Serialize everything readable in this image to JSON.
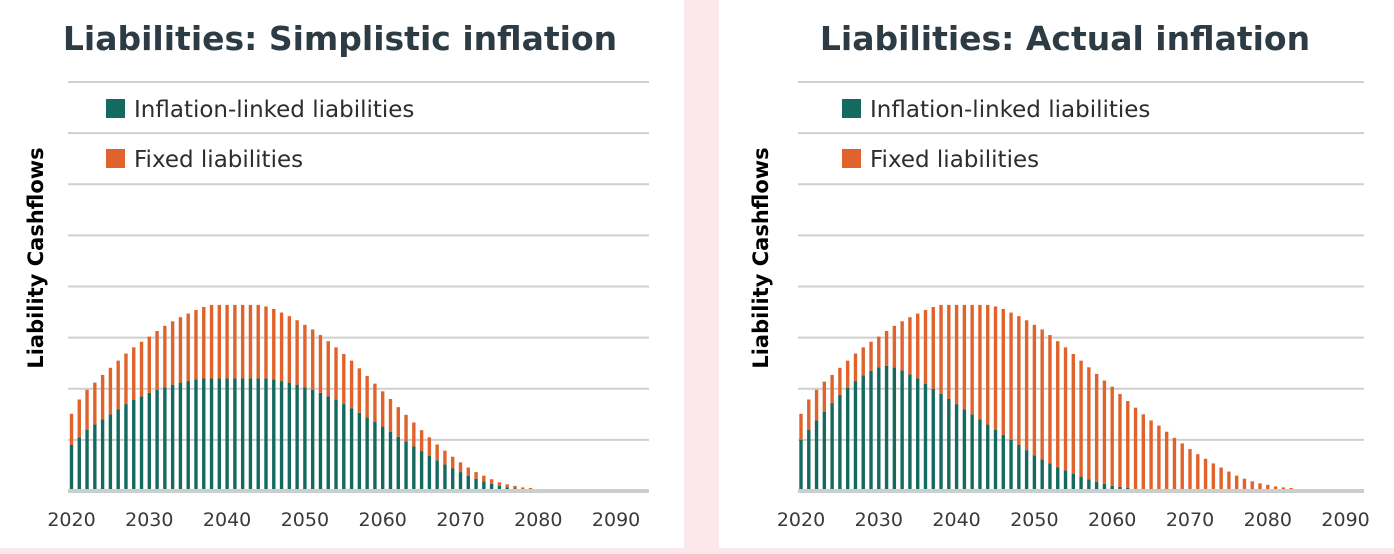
{
  "colors": {
    "inflation_linked": "#156a60",
    "fixed": "#e0632b",
    "baseline": "#c9cfcf"
  },
  "chart_data": [
    {
      "type": "bar",
      "stacked": true,
      "title": "Liabilities: Simplistic inflation",
      "ylabel": "Liability Cashflows",
      "xlabel": "",
      "x_ticks": [
        "2020",
        "2030",
        "2040",
        "2050",
        "2060",
        "2070",
        "2080",
        "2090"
      ],
      "xlim": [
        2020,
        2094
      ],
      "ylim": [
        0,
        8
      ],
      "grid": true,
      "legend_position": "top-left",
      "x": [
        2020,
        2021,
        2022,
        2023,
        2024,
        2025,
        2026,
        2027,
        2028,
        2029,
        2030,
        2031,
        2032,
        2033,
        2034,
        2035,
        2036,
        2037,
        2038,
        2039,
        2040,
        2041,
        2042,
        2043,
        2044,
        2045,
        2046,
        2047,
        2048,
        2049,
        2050,
        2051,
        2052,
        2053,
        2054,
        2055,
        2056,
        2057,
        2058,
        2059,
        2060,
        2061,
        2062,
        2063,
        2064,
        2065,
        2066,
        2067,
        2068,
        2069,
        2070,
        2071,
        2072,
        2073,
        2074,
        2075,
        2076,
        2077,
        2078,
        2079,
        2080,
        2081,
        2082,
        2083,
        2084,
        2085,
        2086,
        2087,
        2088,
        2089,
        2090,
        2091,
        2092,
        2093
      ],
      "series": [
        {
          "name": "Inflation-linked liabilities",
          "values": [
            0.9,
            1.05,
            1.2,
            1.3,
            1.4,
            1.5,
            1.6,
            1.7,
            1.78,
            1.85,
            1.92,
            1.98,
            2.03,
            2.08,
            2.12,
            2.15,
            2.18,
            2.2,
            2.2,
            2.2,
            2.2,
            2.2,
            2.2,
            2.2,
            2.2,
            2.2,
            2.18,
            2.15,
            2.12,
            2.08,
            2.03,
            1.98,
            1.92,
            1.85,
            1.78,
            1.7,
            1.62,
            1.53,
            1.44,
            1.35,
            1.26,
            1.16,
            1.06,
            0.97,
            0.87,
            0.78,
            0.69,
            0.6,
            0.52,
            0.44,
            0.37,
            0.3,
            0.24,
            0.19,
            0.14,
            0.1,
            0.07,
            0.05,
            0.03,
            0.02,
            0.01,
            0,
            0,
            0,
            0,
            0,
            0,
            0,
            0,
            0,
            0,
            0,
            0,
            0
          ]
        },
        {
          "name": "Fixed liabilities",
          "values": [
            0.61,
            0.74,
            0.78,
            0.82,
            0.87,
            0.91,
            0.95,
            0.99,
            1.03,
            1.07,
            1.1,
            1.15,
            1.2,
            1.24,
            1.28,
            1.32,
            1.36,
            1.4,
            1.44,
            1.44,
            1.44,
            1.44,
            1.44,
            1.44,
            1.44,
            1.41,
            1.38,
            1.34,
            1.3,
            1.26,
            1.22,
            1.18,
            1.13,
            1.08,
            1.03,
            0.98,
            0.93,
            0.87,
            0.81,
            0.75,
            0.69,
            0.64,
            0.58,
            0.52,
            0.47,
            0.41,
            0.36,
            0.31,
            0.27,
            0.23,
            0.19,
            0.16,
            0.13,
            0.11,
            0.09,
            0.07,
            0.06,
            0.05,
            0.04,
            0.04,
            0.03,
            0.03,
            0.03,
            0.03,
            0.03,
            0.02,
            0.02,
            0.02,
            0.02,
            0.01,
            0.01,
            0.01,
            0.01,
            0.01
          ]
        }
      ]
    },
    {
      "type": "bar",
      "stacked": true,
      "title": "Liabilities: Actual inflation",
      "ylabel": "Liability Cashflows",
      "xlabel": "",
      "x_ticks": [
        "2020",
        "2030",
        "2040",
        "2050",
        "2060",
        "2070",
        "2080",
        "2090"
      ],
      "xlim": [
        2020,
        2094
      ],
      "ylim": [
        0,
        8
      ],
      "grid": true,
      "legend_position": "top-left",
      "x": [
        2020,
        2021,
        2022,
        2023,
        2024,
        2025,
        2026,
        2027,
        2028,
        2029,
        2030,
        2031,
        2032,
        2033,
        2034,
        2035,
        2036,
        2037,
        2038,
        2039,
        2040,
        2041,
        2042,
        2043,
        2044,
        2045,
        2046,
        2047,
        2048,
        2049,
        2050,
        2051,
        2052,
        2053,
        2054,
        2055,
        2056,
        2057,
        2058,
        2059,
        2060,
        2061,
        2062,
        2063,
        2064,
        2065,
        2066,
        2067,
        2068,
        2069,
        2070,
        2071,
        2072,
        2073,
        2074,
        2075,
        2076,
        2077,
        2078,
        2079,
        2080,
        2081,
        2082,
        2083,
        2084,
        2085,
        2086,
        2087,
        2088,
        2089,
        2090,
        2091,
        2092,
        2093
      ],
      "series": [
        {
          "name": "Inflation-linked liabilities",
          "values": [
            1.0,
            1.2,
            1.38,
            1.55,
            1.72,
            1.88,
            2.02,
            2.15,
            2.26,
            2.35,
            2.42,
            2.45,
            2.42,
            2.36,
            2.28,
            2.2,
            2.1,
            2.0,
            1.9,
            1.8,
            1.7,
            1.6,
            1.5,
            1.4,
            1.3,
            1.2,
            1.1,
            1.0,
            0.9,
            0.8,
            0.7,
            0.62,
            0.54,
            0.46,
            0.4,
            0.34,
            0.28,
            0.23,
            0.18,
            0.14,
            0.1,
            0.08,
            0.06,
            0.04,
            0.03,
            0.02,
            0,
            0,
            0,
            0,
            0,
            0,
            0,
            0,
            0,
            0,
            0,
            0,
            0,
            0,
            0,
            0,
            0,
            0,
            0,
            0,
            0,
            0,
            0,
            0,
            0,
            0,
            0,
            0
          ]
        },
        {
          "name": "Fixed liabilities",
          "values": [
            0.51,
            0.59,
            0.6,
            0.59,
            0.55,
            0.53,
            0.53,
            0.54,
            0.55,
            0.57,
            0.6,
            0.68,
            0.81,
            0.96,
            1.12,
            1.27,
            1.44,
            1.6,
            1.74,
            1.84,
            1.94,
            2.04,
            2.14,
            2.24,
            2.34,
            2.41,
            2.46,
            2.49,
            2.52,
            2.54,
            2.55,
            2.54,
            2.51,
            2.47,
            2.41,
            2.34,
            2.27,
            2.19,
            2.11,
            2.02,
            1.94,
            1.82,
            1.7,
            1.59,
            1.47,
            1.36,
            1.28,
            1.16,
            1.04,
            0.93,
            0.82,
            0.72,
            0.63,
            0.54,
            0.46,
            0.38,
            0.3,
            0.24,
            0.19,
            0.15,
            0.12,
            0.09,
            0.07,
            0.06,
            0,
            0,
            0,
            0,
            0,
            0,
            0,
            0,
            0,
            0
          ]
        }
      ]
    }
  ]
}
